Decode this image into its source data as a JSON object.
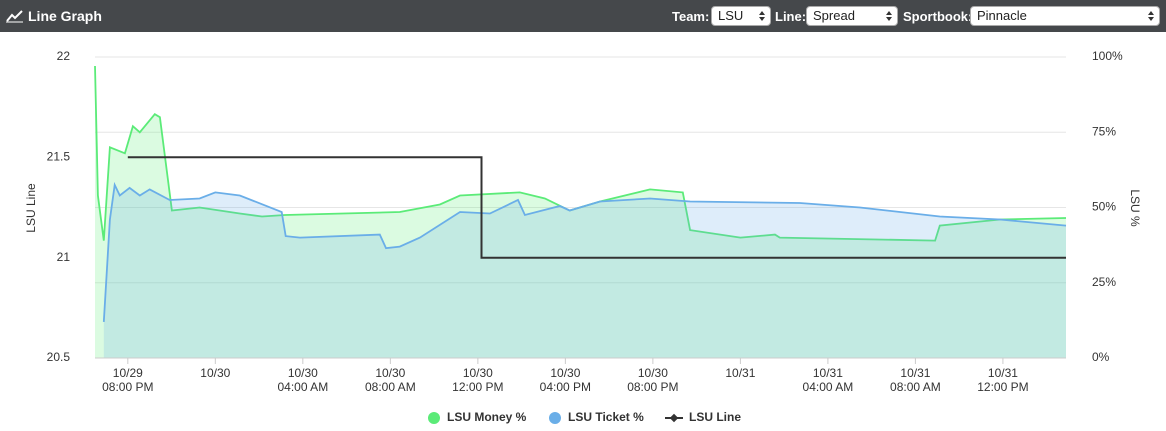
{
  "header": {
    "title": "Line Graph",
    "controls": [
      {
        "label": "Team:",
        "value": "LSU"
      },
      {
        "label": "Line:",
        "value": "Spread"
      },
      {
        "label": "Sportbook:",
        "value": "Pinnacle"
      }
    ]
  },
  "chart_data": {
    "type": "line",
    "ylabel": "LSU Line",
    "y2label": "LSU %",
    "xlim": [
      "10/29 06:30 PM",
      "10/31 02:53 PM"
    ],
    "xticks": [
      {
        "value": "10/29 08:00 PM",
        "label": [
          "10/29",
          "08:00 PM"
        ]
      },
      {
        "value": "10/30 12:00 AM",
        "label": [
          "10/30"
        ]
      },
      {
        "value": "10/30 04:00 AM",
        "label": [
          "10/30",
          "04:00 AM"
        ]
      },
      {
        "value": "10/30 08:00 AM",
        "label": [
          "10/30",
          "08:00 AM"
        ]
      },
      {
        "value": "10/30 12:00 PM",
        "label": [
          "10/30",
          "12:00 PM"
        ]
      },
      {
        "value": "10/30 04:00 PM",
        "label": [
          "10/30",
          "04:00 PM"
        ]
      },
      {
        "value": "10/30 08:00 PM",
        "label": [
          "10/30",
          "08:00 PM"
        ]
      },
      {
        "value": "10/31 12:00 AM",
        "label": [
          "10/31"
        ]
      },
      {
        "value": "10/31 04:00 AM",
        "label": [
          "10/31",
          "04:00 AM"
        ]
      },
      {
        "value": "10/31 08:00 AM",
        "label": [
          "10/31",
          "08:00 AM"
        ]
      },
      {
        "value": "10/31 12:00 PM",
        "label": [
          "10/31",
          "12:00 PM"
        ]
      }
    ],
    "ylim": [
      20.5,
      22
    ],
    "yticks": [
      20.5,
      21,
      21.5,
      22
    ],
    "y2lim": [
      0,
      100
    ],
    "y2ticks": [
      {
        "value": 0,
        "label": "0%"
      },
      {
        "value": 25,
        "label": "25%"
      },
      {
        "value": 50,
        "label": "50%"
      },
      {
        "value": 75,
        "label": "75%"
      },
      {
        "value": 100,
        "label": "100%"
      }
    ],
    "grid": true,
    "series": [
      {
        "name": "LSU Money %",
        "color": "#5beb78",
        "axis": "y2",
        "area": true,
        "x": [
          "10/29 06:30 PM",
          "10/29 06:38 PM",
          "10/29 06:54 PM",
          "10/29 07:11 PM",
          "10/29 07:52 PM",
          "10/29 08:14 PM",
          "10/29 08:33 PM",
          "10/29 09:14 PM",
          "10/29 09:28 PM",
          "10/29 10:01 PM",
          "10/29 11:17 PM",
          "10/30 01:07 AM",
          "10/30 02:08 AM",
          "10/30 03:11 AM",
          "10/30 08:26 AM",
          "10/30 10:16 AM",
          "10/30 11:11 AM",
          "10/30 01:55 PM",
          "10/30 03:04 PM",
          "10/30 04:12 PM",
          "10/30 05:35 PM",
          "10/30 07:52 PM",
          "10/30 09:22 PM",
          "10/30 09:42 PM",
          "10/31 12:00 AM",
          "10/31 01:35 AM",
          "10/31 01:48 AM",
          "10/31 08:54 AM",
          "10/31 09:07 AM",
          "10/31 11:52 AM",
          "10/31 02:53 PM"
        ],
        "values": [
          97,
          54,
          39,
          70,
          68,
          77,
          75,
          81,
          80,
          49,
          50,
          48,
          47,
          47.5,
          48.5,
          51,
          54,
          55,
          53,
          49,
          52,
          56,
          55,
          42.5,
          40,
          41,
          40,
          39,
          44,
          46,
          46.5
        ]
      },
      {
        "name": "LSU Ticket %",
        "color": "#6aaee8",
        "axis": "y2",
        "area": true,
        "x": [
          "10/29 06:54 PM",
          "10/29 07:11 PM",
          "10/29 07:24 PM",
          "10/29 07:38 PM",
          "10/29 08:05 PM",
          "10/29 08:33 PM",
          "10/29 09:00 PM",
          "10/29 09:55 PM",
          "10/29 11:17 PM",
          "10/30 12:00 AM",
          "10/30 01:07 AM",
          "10/30 03:02 AM",
          "10/30 03:13 AM",
          "10/30 03:52 AM",
          "10/30 07:31 AM",
          "10/30 07:48 AM",
          "10/30 08:26 AM",
          "10/30 09:21 AM",
          "10/30 11:11 AM",
          "10/30 12:33 PM",
          "10/30 01:50 PM",
          "10/30 02:09 PM",
          "10/30 03:45 PM",
          "10/30 04:12 PM",
          "10/30 05:35 PM",
          "10/30 07:52 PM",
          "10/30 09:42 PM",
          "10/31 02:43 AM",
          "10/31 05:28 AM",
          "10/31 09:07 AM",
          "10/31 11:52 AM",
          "10/31 02:53 PM"
        ],
        "values": [
          12,
          46,
          57.5,
          54,
          56.5,
          54,
          56,
          52.5,
          53,
          55,
          54,
          48.5,
          40.5,
          40,
          41,
          36.5,
          37,
          40,
          48.5,
          48,
          52.5,
          47.5,
          50.5,
          49,
          52,
          53,
          52,
          51.5,
          50,
          47,
          46,
          44
        ]
      },
      {
        "name": "LSU Line",
        "color": "#333333",
        "axis": "y",
        "x": [
          "10/29 08:00 PM",
          "10/30 12:10 PM",
          "10/30 12:10 PM",
          "10/31 02:53 PM"
        ],
        "values": [
          21.5,
          21.5,
          21,
          21
        ]
      }
    ]
  }
}
